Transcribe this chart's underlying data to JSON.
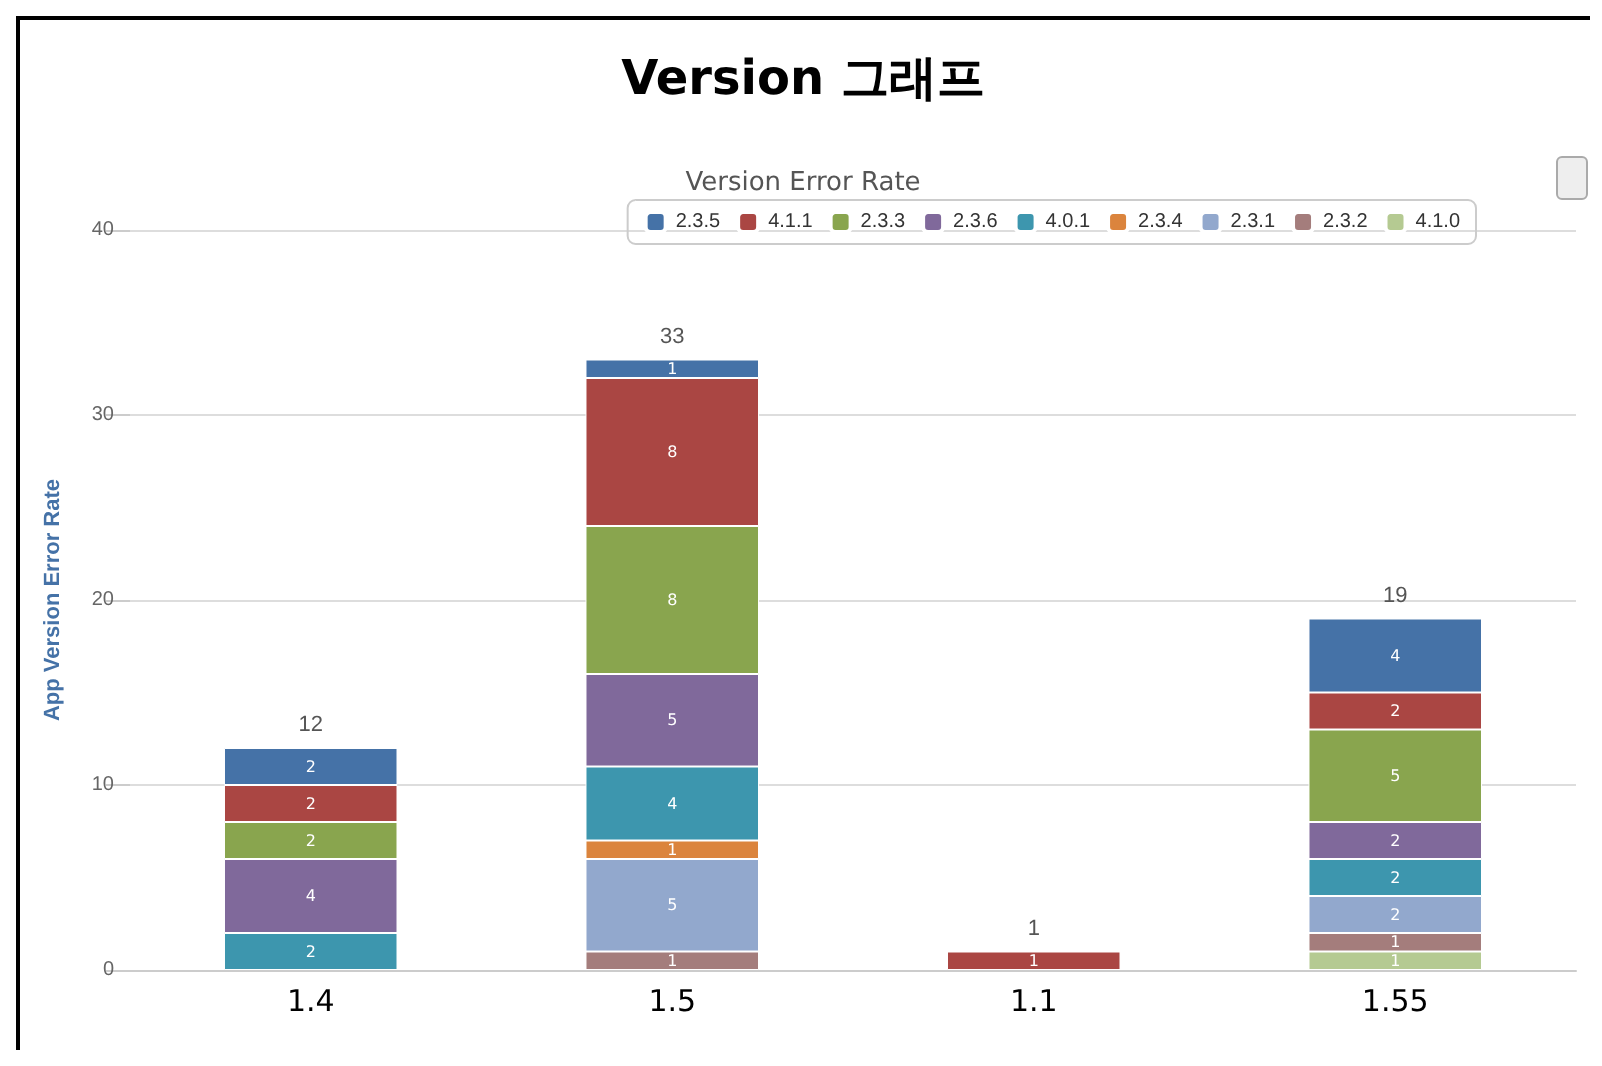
{
  "chart_data": {
    "type": "bar",
    "title": "Version 그래프",
    "subtitle": "Version Error Rate",
    "ylabel": "App Version Error Rate",
    "categories": [
      "1.4",
      "1.5",
      "1.1",
      "1.55"
    ],
    "series": [
      {
        "name": "4.1.0",
        "color": "#b5ca92",
        "values": [
          null,
          null,
          null,
          1
        ]
      },
      {
        "name": "2.3.2",
        "color": "#a47d7c",
        "values": [
          null,
          1,
          null,
          1
        ]
      },
      {
        "name": "2.3.1",
        "color": "#92a8cd",
        "values": [
          null,
          5,
          null,
          2
        ]
      },
      {
        "name": "2.3.4",
        "color": "#db843d",
        "values": [
          null,
          1,
          null,
          null
        ]
      },
      {
        "name": "4.0.1",
        "color": "#3d96ae",
        "values": [
          2,
          4,
          null,
          2
        ]
      },
      {
        "name": "2.3.6",
        "color": "#80699b",
        "values": [
          4,
          5,
          null,
          2
        ]
      },
      {
        "name": "2.3.3",
        "color": "#89a54e",
        "values": [
          2,
          8,
          null,
          5
        ]
      },
      {
        "name": "4.1.1",
        "color": "#aa4643",
        "values": [
          2,
          8,
          1,
          2
        ]
      },
      {
        "name": "2.3.5",
        "color": "#4572a7",
        "values": [
          2,
          1,
          null,
          4
        ]
      }
    ],
    "stacked": true,
    "data_labels": true,
    "totals": [
      "12",
      "33",
      "1",
      "19"
    ],
    "ylim": [
      0,
      40
    ],
    "yticks": [
      0,
      10,
      20,
      30,
      40
    ],
    "grid": "y",
    "legend": "top right"
  }
}
